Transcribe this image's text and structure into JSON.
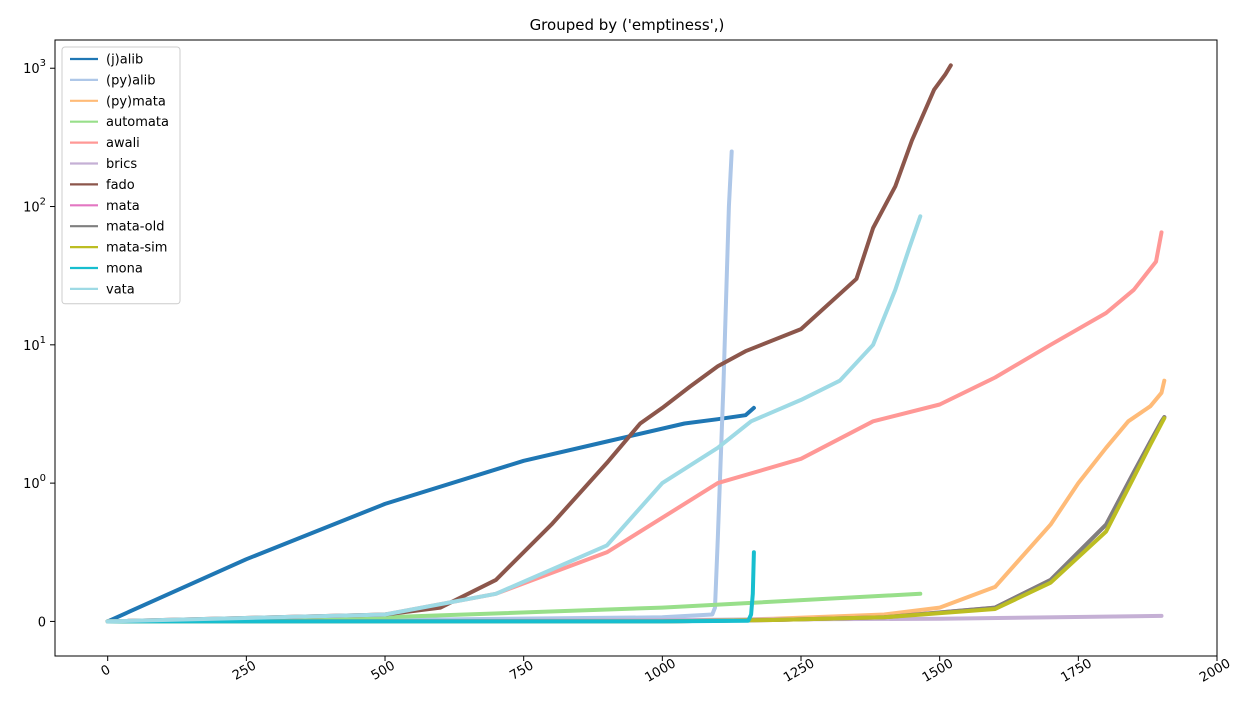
{
  "chart_data": {
    "type": "line",
    "title": "Grouped by ('emptiness',)",
    "xlabel": "",
    "ylabel": "",
    "xlim": [
      -95,
      2000
    ],
    "ylim": [
      -0.25,
      1600
    ],
    "yscale": "symlog",
    "grid": false,
    "legend_position": "top-left",
    "x_ticks": [
      {
        "value": 0,
        "label": "0"
      },
      {
        "value": 250,
        "label": "250"
      },
      {
        "value": 500,
        "label": "500"
      },
      {
        "value": 750,
        "label": "750"
      },
      {
        "value": 1000,
        "label": "1000"
      },
      {
        "value": 1250,
        "label": "1250"
      },
      {
        "value": 1500,
        "label": "1500"
      },
      {
        "value": 1750,
        "label": "1750"
      },
      {
        "value": 2000,
        "label": "2000"
      }
    ],
    "y_ticks": [
      {
        "value": 0,
        "base": "0",
        "exp": ""
      },
      {
        "value": 1,
        "base": "10",
        "exp": "0"
      },
      {
        "value": 10,
        "base": "10",
        "exp": "1"
      },
      {
        "value": 100,
        "base": "10",
        "exp": "2"
      },
      {
        "value": 1000,
        "base": "10",
        "exp": "3"
      }
    ],
    "series": [
      {
        "name": "(j)alib",
        "color": "#1f77b4",
        "x": [
          0,
          250,
          500,
          750,
          900,
          1040,
          1100,
          1150,
          1165
        ],
        "y": [
          0,
          0.45,
          0.85,
          1.45,
          2.0,
          2.7,
          2.9,
          3.1,
          3.5
        ]
      },
      {
        "name": "(py)alib",
        "color": "#aec7e8",
        "x": [
          0,
          500,
          1000,
          1090,
          1095,
          1100,
          1110,
          1120,
          1125
        ],
        "y": [
          0,
          0.01,
          0.03,
          0.05,
          0.1,
          0.6,
          5,
          100,
          250
        ]
      },
      {
        "name": "(py)mata",
        "color": "#ffbb78",
        "x": [
          0,
          1000,
          1200,
          1400,
          1500,
          1600,
          1700,
          1750,
          1800,
          1840,
          1880,
          1900,
          1905
        ],
        "y": [
          0,
          0.0,
          0.02,
          0.05,
          0.1,
          0.25,
          0.7,
          1.0,
          1.8,
          2.8,
          3.6,
          4.5,
          5.5
        ]
      },
      {
        "name": "automata",
        "color": "#98df8a",
        "x": [
          0,
          500,
          1000,
          1465
        ],
        "y": [
          0,
          0.03,
          0.1,
          0.2
        ]
      },
      {
        "name": "awali",
        "color": "#ff9896",
        "x": [
          0,
          500,
          700,
          900,
          1100,
          1250,
          1380,
          1500,
          1600,
          1700,
          1800,
          1850,
          1890,
          1900
        ],
        "y": [
          0,
          0.05,
          0.2,
          0.5,
          1.0,
          1.5,
          2.8,
          3.7,
          5.8,
          10,
          17,
          25,
          40,
          65
        ]
      },
      {
        "name": "brics",
        "color": "#c5b0d5",
        "x": [
          0,
          500,
          1000,
          1500,
          1900
        ],
        "y": [
          0,
          0.0,
          0.01,
          0.02,
          0.04
        ]
      },
      {
        "name": "fado",
        "color": "#8c564b",
        "x": [
          0,
          500,
          600,
          700,
          800,
          900,
          960,
          1000,
          1050,
          1100,
          1150,
          1250,
          1350,
          1380,
          1420,
          1450,
          1490,
          1510,
          1520
        ],
        "y": [
          0,
          0.05,
          0.1,
          0.3,
          0.7,
          1.4,
          2.7,
          3.5,
          5.0,
          7.0,
          9.0,
          13,
          30,
          70,
          140,
          300,
          700,
          900,
          1050
        ]
      },
      {
        "name": "mata",
        "color": "#e377c2",
        "x": [
          0,
          1000,
          1200,
          1400,
          1600,
          1700,
          1800,
          1850,
          1880,
          1900,
          1905
        ],
        "y": [
          0,
          0.0,
          0.01,
          0.03,
          0.1,
          0.3,
          0.7,
          1.2,
          2.0,
          2.8,
          3.0
        ]
      },
      {
        "name": "mata-old",
        "color": "#7f7f7f",
        "x": [
          0,
          1000,
          1200,
          1400,
          1600,
          1700,
          1800,
          1850,
          1880,
          1900,
          1905
        ],
        "y": [
          0,
          0.0,
          0.01,
          0.03,
          0.1,
          0.3,
          0.7,
          1.2,
          2.0,
          2.8,
          3.0
        ]
      },
      {
        "name": "mata-sim",
        "color": "#bcbd22",
        "x": [
          0,
          1000,
          1200,
          1400,
          1600,
          1700,
          1800,
          1850,
          1880,
          1900,
          1905
        ],
        "y": [
          0,
          0.0,
          0.01,
          0.03,
          0.09,
          0.28,
          0.65,
          1.1,
          1.9,
          2.7,
          2.95
        ]
      },
      {
        "name": "mona",
        "color": "#17becf",
        "x": [
          0,
          500,
          1000,
          1155,
          1160,
          1163,
          1165
        ],
        "y": [
          0,
          0.0,
          0.0,
          0.005,
          0.05,
          0.2,
          0.5
        ]
      },
      {
        "name": "vata",
        "color": "#9edae5",
        "x": [
          0,
          500,
          700,
          900,
          1000,
          1100,
          1160,
          1250,
          1320,
          1380,
          1420,
          1445,
          1465
        ],
        "y": [
          0,
          0.05,
          0.2,
          0.55,
          1.0,
          1.8,
          2.8,
          4.0,
          5.5,
          10,
          25,
          50,
          85
        ]
      }
    ]
  }
}
